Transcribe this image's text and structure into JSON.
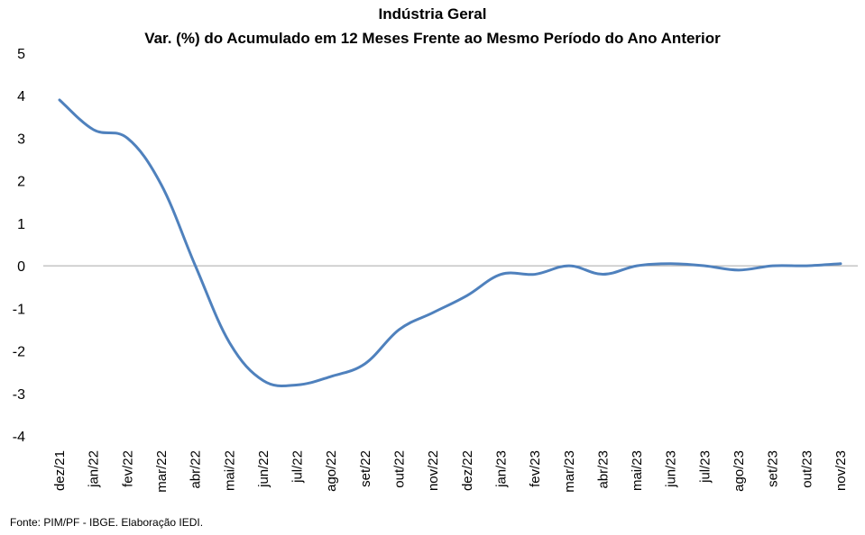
{
  "chart_data": {
    "type": "line",
    "title": "Indústria Geral",
    "subtitle": "Var. (%) do Acumulado em 12 Meses Frente ao Mesmo Período do Ano Anterior",
    "xlabel": "",
    "ylabel": "",
    "ylim": [
      -4,
      5
    ],
    "yticks": [
      5,
      4,
      3,
      2,
      1,
      0,
      -1,
      -2,
      -3,
      -4
    ],
    "categories": [
      "dez/21",
      "jan/22",
      "fev/22",
      "mar/22",
      "abr/22",
      "mai/22",
      "jun/22",
      "jul/22",
      "ago/22",
      "set/22",
      "out/22",
      "nov/22",
      "dez/22",
      "jan/23",
      "fev/23",
      "mar/23",
      "abr/23",
      "mai/23",
      "jun/23",
      "jul/23",
      "ago/23",
      "set/23",
      "out/23",
      "nov/23"
    ],
    "series": [
      {
        "color": "#4f81bd",
        "values": [
          3.9,
          3.2,
          3.0,
          1.9,
          0.0,
          -1.8,
          -2.7,
          -2.8,
          -2.6,
          -2.3,
          -1.5,
          -1.1,
          -0.7,
          -0.2,
          -0.2,
          0.0,
          -0.2,
          0.0,
          0.05,
          0.0,
          -0.1,
          0.0,
          0.0,
          0.05
        ]
      }
    ],
    "grid": false,
    "legend": "none"
  },
  "source": "Fonte: PIM/PF - IBGE. Elaboração IEDI."
}
